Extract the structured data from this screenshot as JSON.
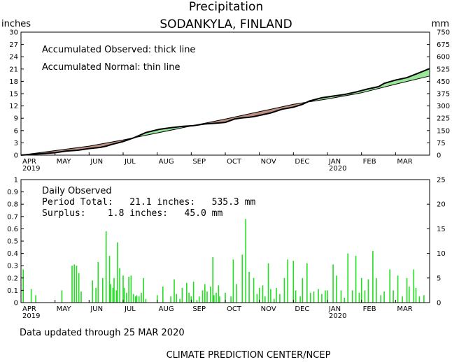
{
  "header": {
    "title": "Precipitation",
    "station": "SODANKYLA, FINLAND",
    "left_unit": "inches",
    "right_unit": "mm"
  },
  "months": [
    "APR",
    "MAY",
    "JUN",
    "JUL",
    "AUG",
    "SEP",
    "OCT",
    "NOV",
    "DEC",
    "JAN",
    "FEB",
    "MAR"
  ],
  "year_labels": [
    {
      "month_index": 0,
      "text": "2019"
    },
    {
      "month_index": 9,
      "text": "2020"
    }
  ],
  "colors": {
    "surplus": "#99e699",
    "deficit": "#bc8f80",
    "daily_bar": "#22dd22",
    "line": "#000000"
  },
  "chart_data": [
    {
      "type": "area",
      "legend_lines": [
        "Accumulated Observed: thick line",
        "Accumulated Normal: thin line"
      ],
      "x_unit": "days since 1 APR 2019",
      "days_total": 360,
      "ylim_in": [
        0,
        30
      ],
      "yticks_in": [
        0,
        3,
        6,
        9,
        12,
        15,
        18,
        21,
        24,
        27,
        30
      ],
      "yticks_mm": [
        0,
        75,
        150,
        225,
        300,
        375,
        450,
        525,
        600,
        675,
        750
      ],
      "series": [
        {
          "name": "Accumulated Observed",
          "x": [
            0,
            10,
            20,
            30,
            40,
            50,
            60,
            70,
            75,
            80,
            90,
            100,
            110,
            122,
            132,
            142,
            152,
            162,
            172,
            180,
            188,
            195,
            200,
            205,
            212,
            220,
            230,
            240,
            248,
            254,
            265,
            275,
            285,
            295,
            305,
            315,
            320,
            330,
            340,
            350,
            360
          ],
          "values": [
            0.0,
            0.2,
            0.4,
            0.6,
            1.0,
            1.2,
            1.6,
            1.9,
            2.2,
            2.6,
            3.3,
            4.3,
            5.5,
            6.3,
            6.7,
            7.0,
            7.2,
            7.6,
            7.8,
            8.0,
            8.8,
            9.1,
            9.2,
            9.4,
            9.8,
            10.3,
            11.2,
            11.7,
            12.4,
            13.2,
            14.0,
            14.4,
            14.8,
            15.4,
            16.1,
            16.7,
            17.5,
            18.3,
            18.9,
            20.0,
            21.1
          ]
        },
        {
          "name": "Accumulated Normal",
          "x": [
            0,
            30,
            60,
            90,
            120,
            150,
            180,
            210,
            240,
            270,
            300,
            330,
            360
          ],
          "values": [
            0.0,
            1.1,
            2.2,
            3.7,
            5.4,
            7.1,
            8.8,
            10.6,
            12.4,
            13.7,
            15.2,
            17.3,
            19.3
          ]
        }
      ]
    },
    {
      "type": "bar",
      "annotation_lines": [
        "Daily Observed",
        "Period Total:   21.1 inches:   535.3 mm",
        "Surplus:    1.8 inches:   45.0 mm"
      ],
      "x_unit": "days since 1 APR 2019",
      "days_total": 360,
      "ylim_in": [
        0,
        1
      ],
      "yticks_in": [
        0,
        0.1,
        0.2,
        0.3,
        0.4,
        0.5,
        0.6,
        0.7,
        0.8,
        0.9,
        1
      ],
      "yticks_mm": [
        0,
        5,
        10,
        15,
        20,
        25
      ],
      "series": [
        {
          "name": "Daily Observed",
          "x": [
            2,
            9,
            13,
            36,
            45,
            47,
            49,
            51,
            53,
            63,
            66,
            68,
            72,
            75,
            78,
            79,
            81,
            82,
            84,
            85,
            87,
            90,
            91,
            93,
            95,
            97,
            99,
            101,
            102,
            104,
            106,
            108,
            110,
            120,
            125,
            132,
            135,
            137,
            140,
            142,
            146,
            148,
            150,
            152,
            155,
            157,
            160,
            162,
            164,
            167,
            169,
            170,
            172,
            174,
            175,
            180,
            185,
            187,
            190,
            195,
            198,
            201,
            205,
            208,
            210,
            213,
            215,
            218,
            220,
            223,
            225,
            228,
            232,
            235,
            240,
            242,
            246,
            248,
            252,
            255,
            258,
            262,
            265,
            268,
            270,
            275,
            278,
            282,
            285,
            288,
            292,
            295,
            298,
            300,
            303,
            306,
            310,
            313,
            317,
            320,
            325,
            328,
            332,
            336,
            340,
            342,
            346,
            348,
            351,
            355
          ],
          "values": [
            0.27,
            0.11,
            0.06,
            0.1,
            0.3,
            0.31,
            0.3,
            0.24,
            0.09,
            0.18,
            0.12,
            0.33,
            0.2,
            0.58,
            0.38,
            0.15,
            0.12,
            0.2,
            0.1,
            0.49,
            0.28,
            0.22,
            0.12,
            0.08,
            0.21,
            0.22,
            0.07,
            0.05,
            0.06,
            0.05,
            0.08,
            0.2,
            0.03,
            0.06,
            0.13,
            0.05,
            0.19,
            0.07,
            0.03,
            0.12,
            0.16,
            0.08,
            0.05,
            0.17,
            0.02,
            0.05,
            0.1,
            0.15,
            0.09,
            0.13,
            0.37,
            0.06,
            0.08,
            0.14,
            0.05,
            0.08,
            0.05,
            0.35,
            0.15,
            0.39,
            0.68,
            0.25,
            0.2,
            0.07,
            0.12,
            0.14,
            0.05,
            0.32,
            0.11,
            0.03,
            0.12,
            0.07,
            0.2,
            0.35,
            0.34,
            0.1,
            0.05,
            0.2,
            0.32,
            0.08,
            0.09,
            0.11,
            0.07,
            0.1,
            0.1,
            0.31,
            0.22,
            0.1,
            0.04,
            0.4,
            0.1,
            0.38,
            0.08,
            0.2,
            0.1,
            0.19,
            0.42,
            0.2,
            0.06,
            0.09,
            0.27,
            0.1,
            0.22,
            0.05,
            0.2,
            0.13,
            0.27,
            0.12,
            0.05,
            0.06
          ]
        }
      ]
    }
  ],
  "footer": {
    "updated": "Data updated through 25 MAR 2020",
    "credit": "CLIMATE PREDICTION CENTER/NCEP"
  }
}
